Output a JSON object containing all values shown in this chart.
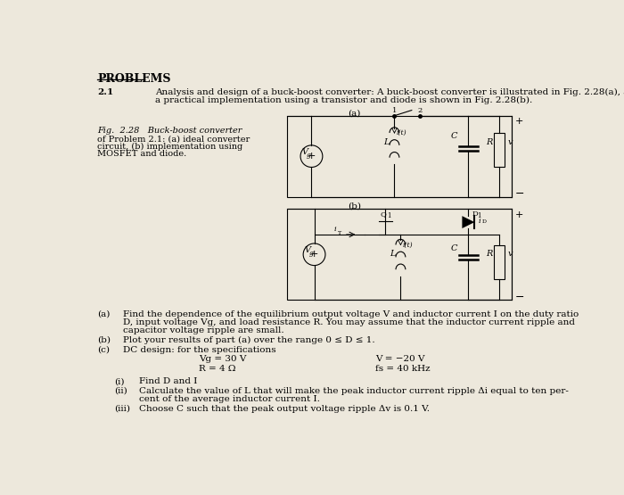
{
  "background_color": "#ede8dc",
  "title": "PROBLEMS",
  "problem_num": "2.1",
  "problem_text_line1": "Analysis and design of a buck-boost converter: A buck-boost converter is illustrated in Fig. 2.28(a), and",
  "problem_text_line2": "a practical implementation using a transistor and diode is shown in Fig. 2.28(b).",
  "fig_label1": "Fig.  2.28   Buck-boost converter",
  "fig_label2": "of Problem 2.1: (a) ideal converter",
  "fig_label3": "circuit, (b) implementation using",
  "fig_label4": "MOSFET and diode.",
  "fig_a_label": "(a)",
  "fig_b_label": "(b)",
  "sub_a_label": "(a)",
  "sub_b_label": "(b)",
  "sub_c_label": "(c)",
  "sub_a_text_line1": "Find the dependence of the equilibrium output voltage V and inductor current I on the duty ratio",
  "sub_a_text_line2": "D, input voltage Vg, and load resistance R. You may assume that the inductor current ripple and",
  "sub_a_text_line3": "capacitor voltage ripple are small.",
  "sub_b_text": "Plot your results of part (a) over the range 0 ≤ D ≤ 1.",
  "sub_c_text": "DC design: for the specifications",
  "spec1_left": "Vg = 30 V",
  "spec1_right": "V = −20 V",
  "spec2_left": "R = 4 Ω",
  "spec2_right": "fs = 40 kHz",
  "sub_i_text": "Find D and I",
  "sub_ii_text": "Calculate the value of L that will make the peak inductor current ripple Δi equal to ten per-",
  "sub_ii_text2": "cent of the average inductor current I.",
  "sub_iii_text": "Choose C such that the peak output voltage ripple Δv is 0.1 V."
}
